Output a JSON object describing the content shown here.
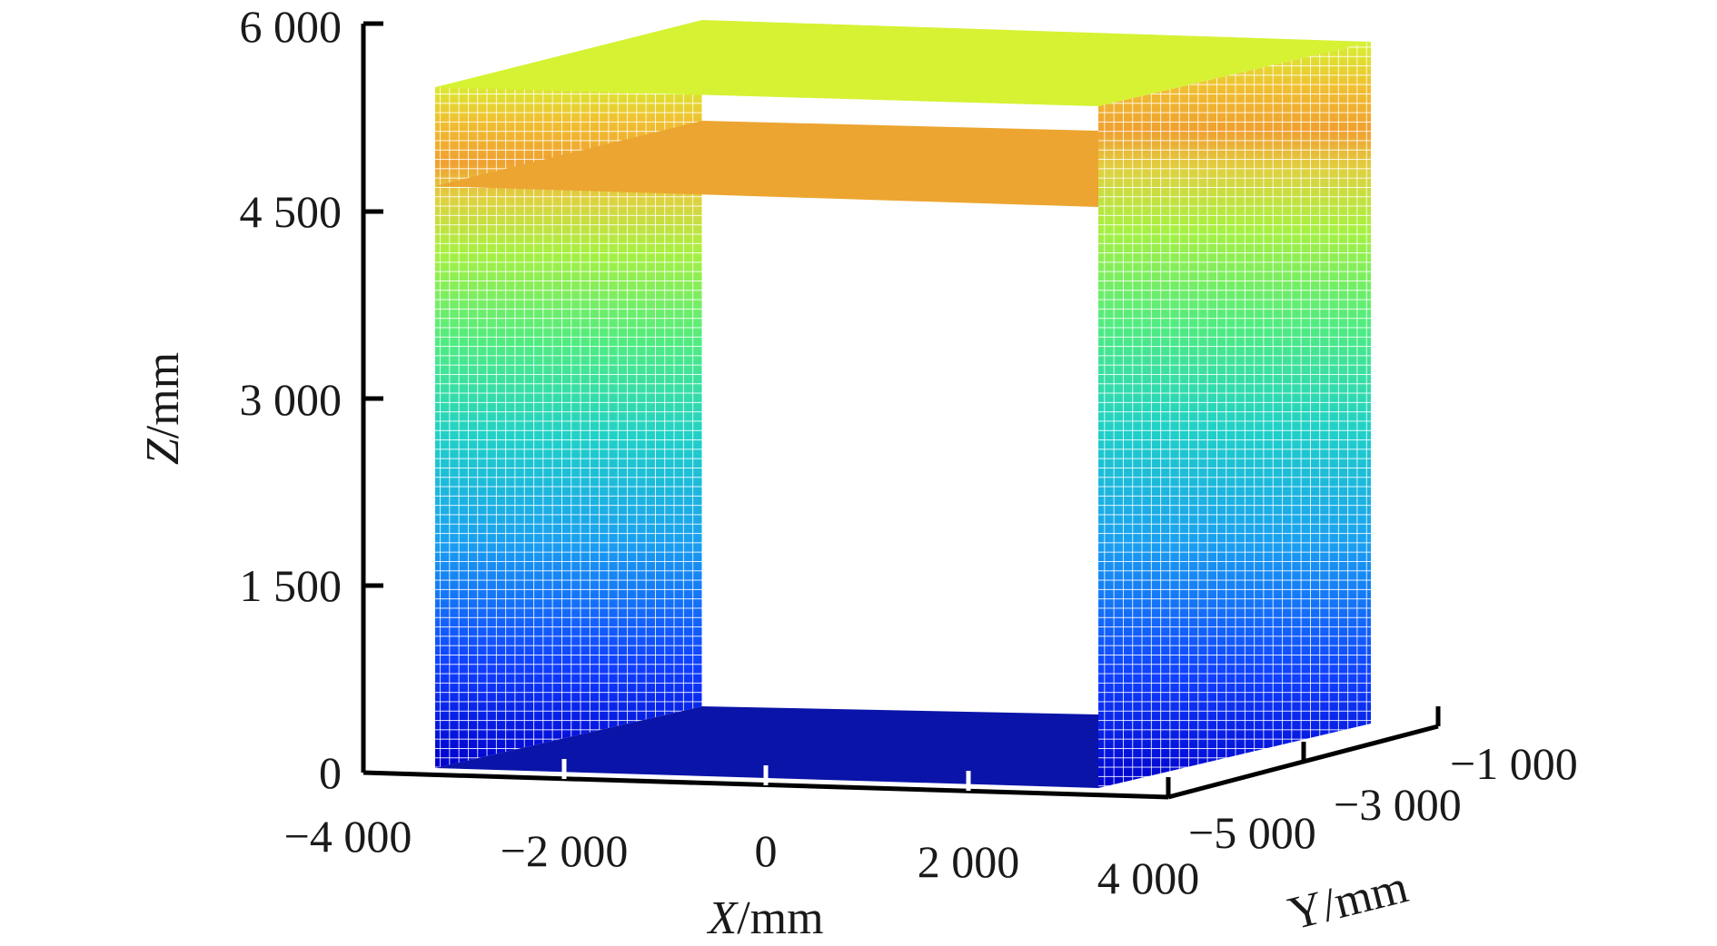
{
  "chart_data": {
    "type": "surface3d",
    "title": "",
    "axes": {
      "x": {
        "label_var": "X",
        "label_unit": "/mm",
        "ticks": [
          -4000,
          -2000,
          0,
          2000,
          4000
        ],
        "tick_labels": [
          "−4 000",
          "−2 000",
          "0",
          "2 000",
          "4 000"
        ]
      },
      "y": {
        "label": "Y/mm",
        "ticks": [
          -5000,
          -3000,
          -1000
        ],
        "tick_labels": [
          "−5 000",
          "−3 000",
          "−1 000"
        ]
      },
      "z": {
        "label_var": "Z",
        "label_unit": "/mm",
        "ticks": [
          0,
          1500,
          3000,
          4500,
          6000
        ],
        "tick_labels": [
          "0",
          "1 500",
          "3 000",
          "4 500",
          "6 000"
        ],
        "range": [
          0,
          6000
        ]
      }
    },
    "surfaces": [
      {
        "name": "floor",
        "kind": "horizontal-plane",
        "z": 0,
        "x_range": [
          -3200,
          3200
        ],
        "y_range": [
          -5600,
          -1400
        ],
        "color": "#0a14a8"
      },
      {
        "name": "mid-slab",
        "kind": "horizontal-plane",
        "z": 4700,
        "x_range": [
          -3200,
          3200
        ],
        "y_range": [
          -5600,
          -1400
        ],
        "color": "#eca530"
      },
      {
        "name": "ceiling",
        "kind": "horizontal-plane",
        "z": 5500,
        "x_range": [
          -3200,
          3200
        ],
        "y_range": [
          -5600,
          -1400
        ],
        "color": "#d6f233"
      },
      {
        "name": "side-wall-left",
        "kind": "vertical-mesh",
        "x": -3200,
        "y_range": [
          -5600,
          -1400
        ],
        "z_range": [
          0,
          5500
        ]
      },
      {
        "name": "side-wall-right",
        "kind": "vertical-mesh",
        "x": 3200,
        "y_range": [
          -5600,
          -1400
        ],
        "z_range": [
          0,
          5500
        ]
      }
    ],
    "colormap": [
      "#0000c8",
      "#1466ff",
      "#14c8dc",
      "#28e6a0",
      "#78f050",
      "#c8f032",
      "#f0c030",
      "#f0a030",
      "#d6f233"
    ],
    "grid": false,
    "legend": "none"
  }
}
